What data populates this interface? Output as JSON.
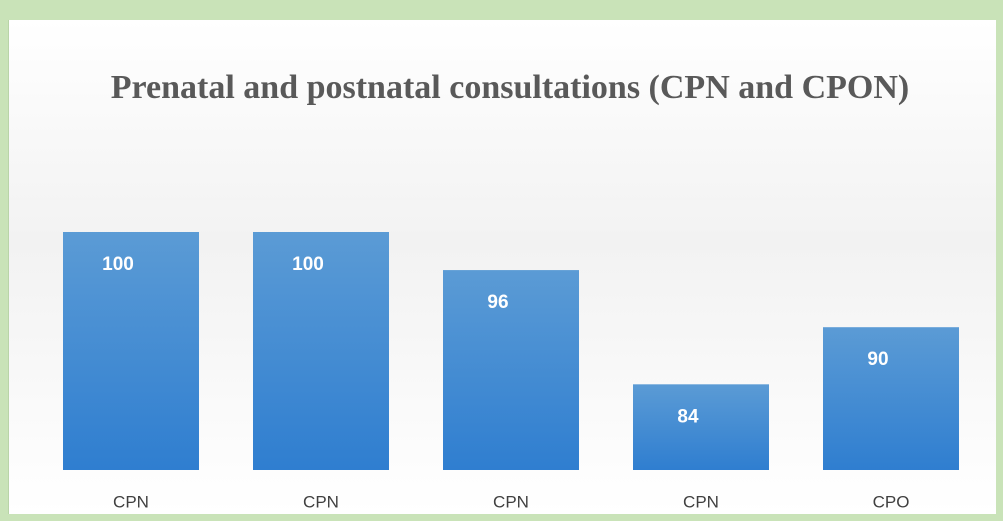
{
  "chart_data": {
    "type": "bar",
    "title": "Prenatal and postnatal consultations (CPN and CPON)",
    "categories": [
      "CPN",
      "CPN",
      "CPN",
      "CPN",
      "CPO"
    ],
    "values": [
      100,
      100,
      96,
      84,
      90
    ],
    "color": "#4a8fd6",
    "ylim": [
      75,
      100
    ],
    "grid": false
  }
}
